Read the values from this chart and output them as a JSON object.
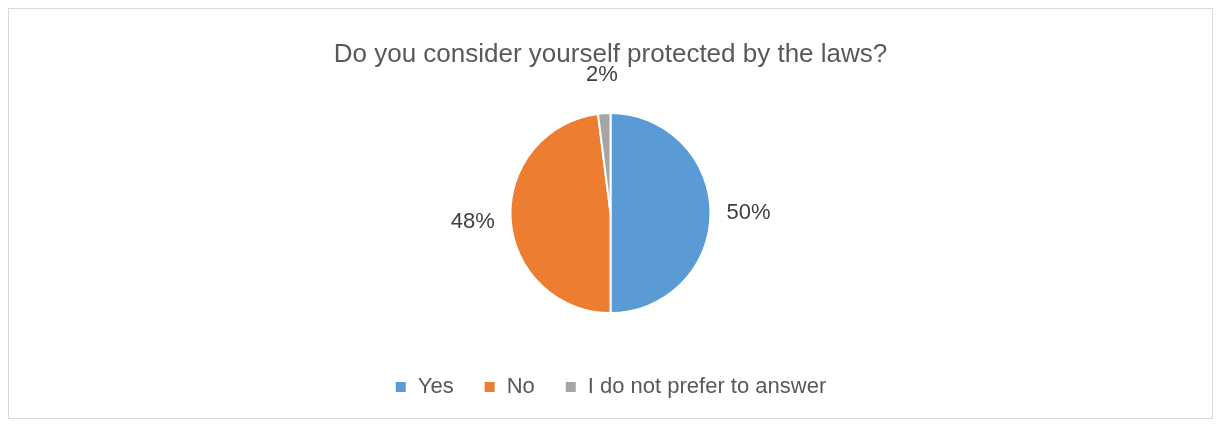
{
  "chart_data": {
    "type": "pie",
    "title": "Do you consider yourself protected by the laws?",
    "categories": [
      "Yes",
      "No",
      "I do not prefer to answer"
    ],
    "values": [
      50,
      48,
      2
    ],
    "colors": [
      "#5b9bd5",
      "#ed7d31",
      "#a5a5a5"
    ],
    "value_labels": [
      "50%",
      "48%",
      "2%"
    ],
    "legend": "bottom"
  }
}
